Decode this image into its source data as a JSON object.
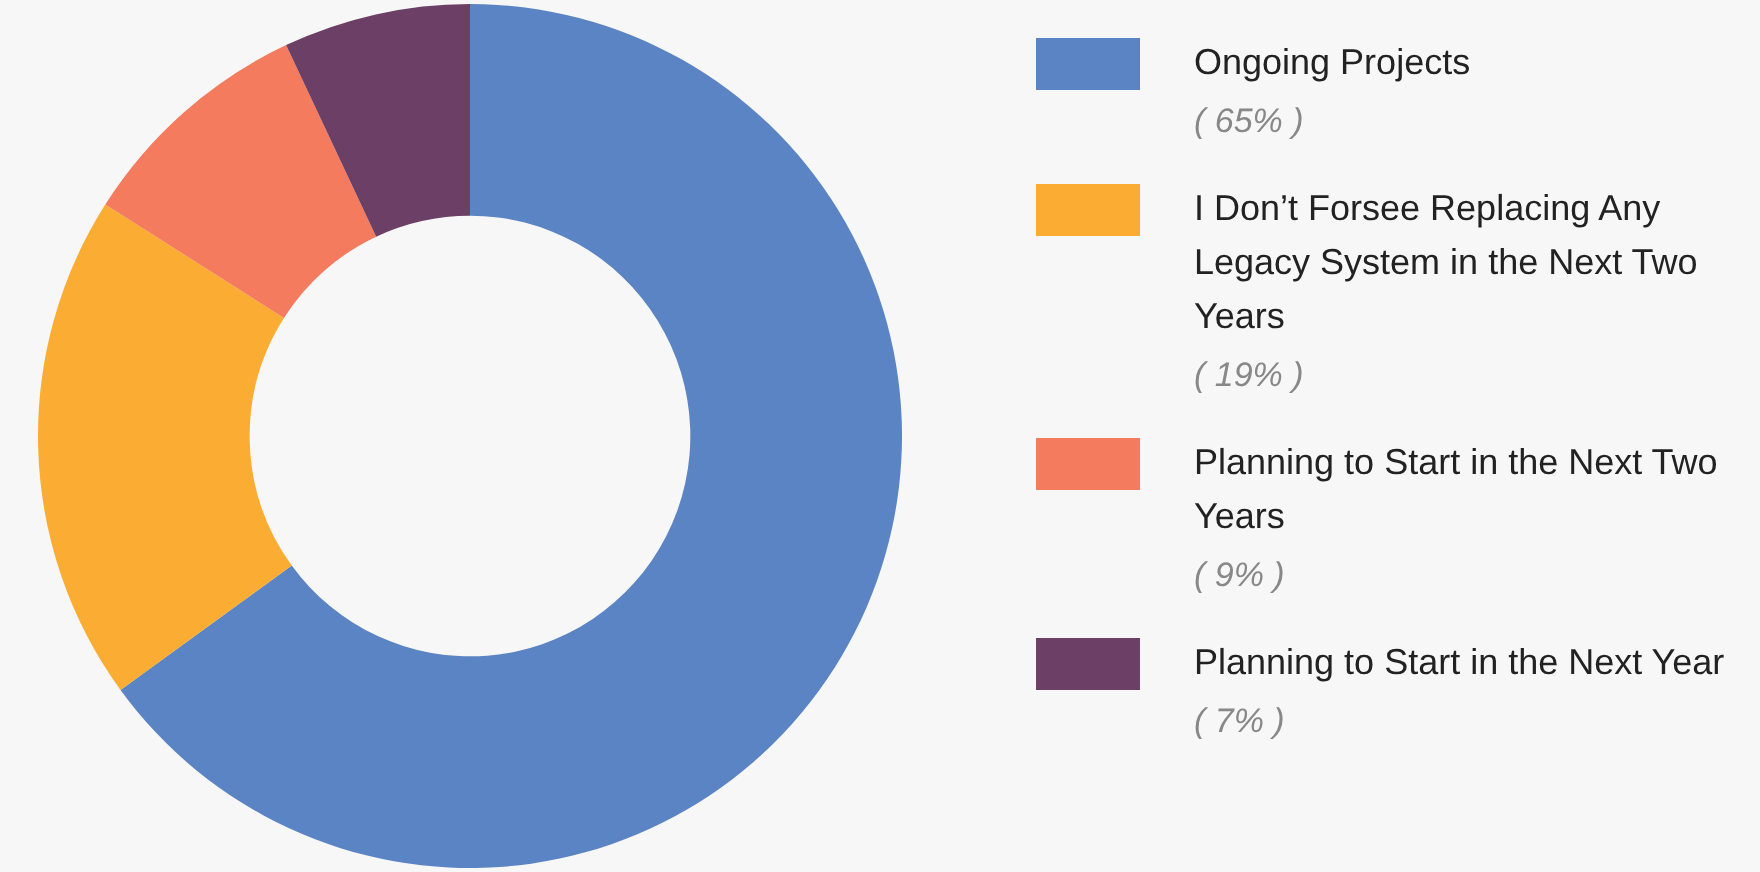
{
  "chart_data": {
    "type": "donut",
    "categories": [
      "Ongoing Projects",
      "I Don’t Forsee Replacing Any Legacy System in the Next Two Years",
      "Planning to Start in the Next Two Years",
      "Planning to Start in the Next Year"
    ],
    "values": [
      65,
      19,
      9,
      7
    ],
    "colors": [
      "#5b84c4",
      "#fbad33",
      "#f47b5e",
      "#6b3f66"
    ],
    "value_labels": [
      "( 65% )",
      "( 19% )",
      "( 9% )",
      "( 7% )"
    ],
    "legend": "right"
  }
}
